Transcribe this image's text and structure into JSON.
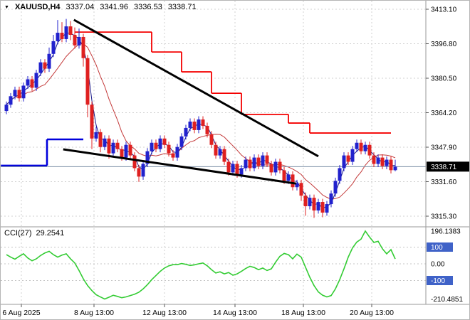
{
  "header": {
    "dropdown_icon": "▼",
    "symbol": "XAUUSD,H4",
    "open": "3337.04",
    "high": "3341.96",
    "low": "3336.53",
    "close": "3338.71"
  },
  "indicator_header": {
    "name": "CCI(27)",
    "value": "29.2541"
  },
  "colors": {
    "bull": "#2121cd",
    "bear": "#df2020",
    "step_red": "#f40000",
    "step_blue": "#0000dc",
    "trendline": "#000000",
    "ma_fast": "#1c1c8a",
    "ma_slow": "#c43b3b",
    "cci_line": "#33cc33",
    "grid": "#d0d0d0",
    "badge_blue": "#3f62c8",
    "price_badge_bg": "#000000",
    "price_line": "#7c8ea6",
    "axis_text": "#000000"
  },
  "chart_data": {
    "type": "candlestick",
    "symbol": "XAUUSD",
    "timeframe": "H4",
    "price_axis": {
      "ticks": [
        "3413.10",
        "3396.80",
        "3380.50",
        "3364.20",
        "3347.90",
        "3331.60",
        "3315.30"
      ],
      "current_price": "3338.71"
    },
    "time_axis": {
      "ticks": [
        {
          "label": "6 Aug 2025",
          "i": 3.5
        },
        {
          "label": "8 Aug 13:00",
          "i": 20.5
        },
        {
          "label": "12 Aug 13:00",
          "i": 37
        },
        {
          "label": "14 Aug 13:00",
          "i": 53.5
        },
        {
          "label": "18 Aug 13:00",
          "i": 69.5
        },
        {
          "label": "20 Aug 13:00",
          "i": 85.5
        }
      ]
    },
    "candles": [
      [
        3365,
        3369.5,
        3363.5,
        3368
      ],
      [
        3368,
        3373.5,
        3366.5,
        3372
      ],
      [
        3372,
        3376.5,
        3370.5,
        3375
      ],
      [
        3375,
        3376.5,
        3369.5,
        3371
      ],
      [
        3371,
        3378.5,
        3369.5,
        3377
      ],
      [
        3377,
        3381.5,
        3375.5,
        3380
      ],
      [
        3380,
        3381.5,
        3374.5,
        3376
      ],
      [
        3376,
        3384.5,
        3374.5,
        3383
      ],
      [
        3383,
        3389.5,
        3381.5,
        3388
      ],
      [
        3388,
        3389.5,
        3383,
        3385
      ],
      [
        3385,
        3395,
        3383.5,
        3392
      ],
      [
        3392,
        3401,
        3390.5,
        3398
      ],
      [
        3398,
        3408,
        3396.5,
        3402
      ],
      [
        3402,
        3407,
        3397.5,
        3399
      ],
      [
        3399,
        3408.5,
        3397.5,
        3405
      ],
      [
        3405,
        3407.5,
        3398.5,
        3401
      ],
      [
        3401,
        3404.5,
        3394.5,
        3396
      ],
      [
        3396,
        3404,
        3394.5,
        3400
      ],
      [
        3400,
        3401.5,
        3386,
        3390
      ],
      [
        3390,
        3391.5,
        3362,
        3368
      ],
      [
        3368,
        3369.5,
        3347,
        3352
      ],
      [
        3352,
        3357.5,
        3350.5,
        3355
      ],
      [
        3355,
        3356.5,
        3345.5,
        3348
      ],
      [
        3348,
        3353.5,
        3346.5,
        3352
      ],
      [
        3352,
        3353.5,
        3342.5,
        3345
      ],
      [
        3345,
        3351.5,
        3343.5,
        3350
      ],
      [
        3350,
        3351.5,
        3345.5,
        3347
      ],
      [
        3347,
        3348.5,
        3341.5,
        3343
      ],
      [
        3343,
        3350.5,
        3341.5,
        3349
      ],
      [
        3349,
        3350.5,
        3342.5,
        3344
      ],
      [
        3344,
        3345.5,
        3336.5,
        3338
      ],
      [
        3338,
        3339.5,
        3331.5,
        3334
      ],
      [
        3334,
        3341.5,
        3332.5,
        3340
      ],
      [
        3340,
        3347.5,
        3338.5,
        3346
      ],
      [
        3346,
        3351.5,
        3344.5,
        3350
      ],
      [
        3350,
        3351.5,
        3345.5,
        3347
      ],
      [
        3347,
        3353.5,
        3345.5,
        3352
      ],
      [
        3352,
        3353.5,
        3347.5,
        3349
      ],
      [
        3349,
        3350.5,
        3343.5,
        3345
      ],
      [
        3345,
        3346.5,
        3341.5,
        3343
      ],
      [
        3343,
        3349.5,
        3341.5,
        3348
      ],
      [
        3348,
        3354.5,
        3346.5,
        3353
      ],
      [
        3353,
        3358.5,
        3351.5,
        3357
      ],
      [
        3357,
        3361.5,
        3355.5,
        3360
      ],
      [
        3360,
        3361.5,
        3354.5,
        3356
      ],
      [
        3356,
        3362.5,
        3354.5,
        3361
      ],
      [
        3361,
        3362.5,
        3356.5,
        3358
      ],
      [
        3358,
        3359.5,
        3352.5,
        3354
      ],
      [
        3354,
        3355.5,
        3347.5,
        3349
      ],
      [
        3349,
        3350.5,
        3342.5,
        3344
      ],
      [
        3344,
        3348.5,
        3342.5,
        3347
      ],
      [
        3347,
        3348.5,
        3339.5,
        3341
      ],
      [
        3341,
        3342.5,
        3334.5,
        3336
      ],
      [
        3336,
        3341.5,
        3334.5,
        3340
      ],
      [
        3340,
        3341.5,
        3333.5,
        3335
      ],
      [
        3335,
        3339.5,
        3333.5,
        3338
      ],
      [
        3338,
        3343.5,
        3336.5,
        3342
      ],
      [
        3342,
        3343.5,
        3336.5,
        3338
      ],
      [
        3338,
        3344.5,
        3336.5,
        3343
      ],
      [
        3343,
        3344.5,
        3337.5,
        3339
      ],
      [
        3339,
        3345.5,
        3337.5,
        3344
      ],
      [
        3344,
        3345.5,
        3338.5,
        3340
      ],
      [
        3340,
        3341.5,
        3334.5,
        3336
      ],
      [
        3336,
        3342.5,
        3334.5,
        3341
      ],
      [
        3341,
        3342.5,
        3335.5,
        3337
      ],
      [
        3337,
        3338.5,
        3330.5,
        3332
      ],
      [
        3332,
        3336.5,
        3330.5,
        3335
      ],
      [
        3335,
        3336.5,
        3327.5,
        3329
      ],
      [
        3329,
        3332.5,
        3327.5,
        3331
      ],
      [
        3331,
        3332.5,
        3322.5,
        3325
      ],
      [
        3325,
        3326.5,
        3315.5,
        3320
      ],
      [
        3320,
        3325.5,
        3318.5,
        3324
      ],
      [
        3324,
        3325.5,
        3314.5,
        3318
      ],
      [
        3318,
        3323.5,
        3316.5,
        3322
      ],
      [
        3322,
        3323.5,
        3314.8,
        3317
      ],
      [
        3317,
        3322.5,
        3315.5,
        3321
      ],
      [
        3321,
        3327.5,
        3319.5,
        3326
      ],
      [
        3326,
        3333.5,
        3324.5,
        3332
      ],
      [
        3332,
        3339.5,
        3330.5,
        3338
      ],
      [
        3338,
        3345.5,
        3336.5,
        3344
      ],
      [
        3344,
        3345.5,
        3339.5,
        3341
      ],
      [
        3341,
        3348.5,
        3339.5,
        3347
      ],
      [
        3347,
        3351.5,
        3345.5,
        3350
      ],
      [
        3350,
        3351.5,
        3344.5,
        3346
      ],
      [
        3346,
        3350.5,
        3344.5,
        3349
      ],
      [
        3349,
        3350.5,
        3342.5,
        3344
      ],
      [
        3344,
        3345.5,
        3338.5,
        3340
      ],
      [
        3340,
        3344.5,
        3338.5,
        3343
      ],
      [
        3343,
        3344.5,
        3337.5,
        3339
      ],
      [
        3339,
        3343.5,
        3337.5,
        3342
      ],
      [
        3342,
        3343.5,
        3335.5,
        3337.04
      ],
      [
        3337.04,
        3341.96,
        3336.53,
        3338.71
      ]
    ],
    "overlays": {
      "red_step": [
        {
          "i1": 16,
          "i2": 34,
          "p": 3402.3
        },
        {
          "i1": 34,
          "i2": 41,
          "p": 3392.9
        },
        {
          "i1": 41,
          "i2": 48,
          "p": 3383.5
        },
        {
          "i1": 48,
          "i2": 55,
          "p": 3373.4
        },
        {
          "i1": 55,
          "i2": 66,
          "p": 3363.4
        },
        {
          "i1": 66,
          "i2": 71,
          "p": 3359.3
        },
        {
          "i1": 71,
          "i2": 90,
          "p": 3354.6
        }
      ],
      "blue_step": [
        {
          "i1": -1.3,
          "i2": 9.5,
          "p": 3339.2
        },
        {
          "i1": 9.5,
          "i2": 18,
          "p": 3351.6
        }
      ],
      "trendlines": [
        {
          "i1": 15.8,
          "p1": 3408.1,
          "i2": 73,
          "p2": 3343.6
        },
        {
          "i1": 13.3,
          "p1": 3346.9,
          "i2": 67.8,
          "p2": 3330.7
        }
      ]
    },
    "indicator": {
      "name": "CCI",
      "period": 27,
      "current": 29.2541,
      "values": [
        55,
        40,
        28,
        45,
        60,
        35,
        18,
        30,
        50,
        65,
        75,
        55,
        40,
        52,
        60,
        30,
        5,
        -40,
        -90,
        -130,
        -160,
        -185,
        -198,
        -210.49,
        -200,
        -188,
        -195,
        -203,
        -198,
        -190,
        -182,
        -170,
        -150,
        -125,
        -95,
        -70,
        -45,
        -25,
        -12,
        -5,
        -5,
        2,
        -3,
        -10,
        -6,
        0,
        5,
        -12,
        -35,
        -55,
        -48,
        -60,
        -52,
        -68,
        -60,
        -45,
        -28,
        -15,
        -22,
        -35,
        -25,
        -40,
        -30,
        10,
        45,
        62,
        55,
        30,
        58,
        40,
        -20,
        -80,
        -130,
        -168,
        -188,
        -198,
        -190,
        -150,
        -95,
        -30,
        40,
        95,
        130,
        148,
        196.14,
        160,
        128,
        135,
        90,
        60,
        85,
        29.25
      ],
      "levels": [
        100,
        0,
        -100
      ],
      "axis_labels": [
        {
          "text": "196.1383",
          "value": 196.1383,
          "badge": false
        },
        {
          "text": "100",
          "value": 100,
          "badge": true
        },
        {
          "text": "0.00",
          "value": 0,
          "badge": false
        },
        {
          "text": "-100",
          "value": -100,
          "badge": true
        },
        {
          "text": "-210.4851",
          "value": -210.4851,
          "badge": false
        }
      ]
    }
  }
}
